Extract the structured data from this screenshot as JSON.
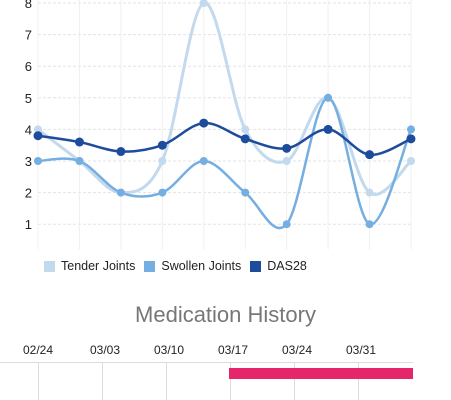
{
  "chart_data": {
    "type": "line",
    "title": "",
    "xlabel": "",
    "ylabel": "",
    "ylim": [
      0.2,
      8
    ],
    "y_ticks": [
      1,
      2,
      3,
      4,
      5,
      6,
      7,
      8
    ],
    "grid": true,
    "legend_position": "bottom-left",
    "x": [
      0,
      1,
      2,
      3,
      4,
      5,
      6,
      7,
      8,
      9
    ],
    "series": [
      {
        "name": "Tender Joints",
        "color": "#c3d9ee",
        "values": [
          4,
          3,
          2,
          3,
          8,
          4,
          3,
          5,
          2,
          3
        ]
      },
      {
        "name": "Swollen Joints",
        "color": "#75aee0",
        "values": [
          3,
          3,
          2,
          2,
          3,
          2,
          1,
          5,
          1,
          4
        ]
      },
      {
        "name": "DAS28",
        "color": "#1e4c9c",
        "values": [
          3.8,
          3.6,
          3.3,
          3.5,
          4.2,
          3.7,
          3.4,
          4.0,
          3.2,
          3.7
        ]
      }
    ]
  },
  "medication_history": {
    "title": "Medication History",
    "dates": [
      "02/24",
      "03/03",
      "03/10",
      "03/17",
      "03/24",
      "03/31"
    ],
    "bar": {
      "start_fraction": 0.51,
      "end_fraction": 1.0,
      "color": "#e6266a"
    }
  }
}
